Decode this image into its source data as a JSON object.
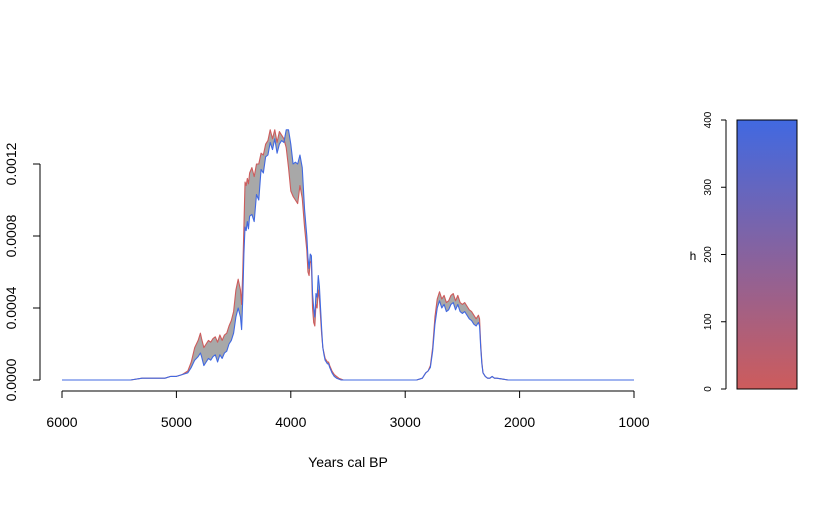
{
  "chart_data": [
    {
      "type": "area",
      "title": "",
      "xlabel": "Years cal BP",
      "ylabel": "",
      "xlim": [
        6000,
        1000
      ],
      "ylim": [
        0,
        0.0014
      ],
      "x_ticks": [
        6000,
        5000,
        4000,
        3000,
        2000,
        1000
      ],
      "x_tick_labels": [
        "6000",
        "5000",
        "4000",
        "3000",
        "2000",
        "1000"
      ],
      "y_ticks": [
        0,
        0.0004,
        0.0008,
        0.0012
      ],
      "y_tick_labels": [
        "0.0000",
        "0.0004",
        "0.0008",
        "0.0012"
      ],
      "grid": false,
      "band_fill_color": "#a8a8a8",
      "series": [
        {
          "color": "#cd5c5c",
          "x": [
            6000,
            5600,
            5400,
            5300,
            5250,
            5200,
            5100,
            5050,
            5000,
            4950,
            4900,
            4870,
            4840,
            4810,
            4790,
            4780,
            4760,
            4740,
            4720,
            4700,
            4680,
            4660,
            4640,
            4620,
            4600,
            4580,
            4560,
            4540,
            4520,
            4500,
            4480,
            4460,
            4440,
            4430,
            4420,
            4410,
            4400,
            4390,
            4380,
            4370,
            4360,
            4340,
            4320,
            4300,
            4280,
            4260,
            4240,
            4220,
            4200,
            4180,
            4160,
            4140,
            4120,
            4100,
            4080,
            4060,
            4040,
            4020,
            4000,
            3980,
            3960,
            3940,
            3920,
            3900,
            3880,
            3860,
            3850,
            3840,
            3830,
            3820,
            3810,
            3800,
            3790,
            3780,
            3770,
            3760,
            3750,
            3740,
            3730,
            3720,
            3710,
            3700,
            3690,
            3680,
            3670,
            3660,
            3640,
            3620,
            3600,
            3580,
            3560,
            3540,
            3500,
            3400,
            3200,
            3000,
            2900,
            2850,
            2830,
            2820,
            2800,
            2780,
            2760,
            2740,
            2720,
            2700,
            2680,
            2660,
            2640,
            2620,
            2600,
            2580,
            2560,
            2540,
            2520,
            2500,
            2480,
            2460,
            2440,
            2420,
            2400,
            2380,
            2360,
            2350,
            2340,
            2330,
            2320,
            2300,
            2280,
            2260,
            2240,
            2220,
            2200,
            2150,
            2100,
            2000,
            1500,
            1000
          ],
          "y": [
            0,
            0,
            0,
            1e-05,
            1e-05,
            1e-05,
            1e-05,
            2e-05,
            2e-05,
            3e-05,
            5e-05,
            0.0001,
            0.00018,
            0.00022,
            0.00026,
            0.00023,
            0.00018,
            0.0002,
            0.00022,
            0.00021,
            0.00023,
            0.00024,
            0.00021,
            0.00025,
            0.00022,
            0.00025,
            0.00026,
            0.0003,
            0.00033,
            0.00038,
            0.0005,
            0.00056,
            0.0005,
            0.00042,
            0.0006,
            0.00085,
            0.0011,
            0.00108,
            0.00112,
            0.00109,
            0.00115,
            0.00118,
            0.00113,
            0.0012,
            0.0012,
            0.00126,
            0.00125,
            0.00131,
            0.00133,
            0.00139,
            0.00134,
            0.00139,
            0.00132,
            0.00138,
            0.00136,
            0.00134,
            0.00129,
            0.00118,
            0.00105,
            0.00102,
            0.001,
            0.00098,
            0.00108,
            0.00101,
            0.00085,
            0.00072,
            0.0006,
            0.00058,
            0.00066,
            0.00065,
            0.0004,
            0.00032,
            0.0003,
            0.00042,
            0.0004,
            0.0005,
            0.00045,
            0.00035,
            0.00025,
            0.00018,
            0.00015,
            0.00012,
            0.00011,
            0.0001,
            0.0001,
            8e-05,
            5e-05,
            3e-05,
            2e-05,
            1e-05,
            5e-06,
            0,
            0,
            0,
            0,
            0,
            0,
            1e-05,
            3e-05,
            4e-05,
            5e-05,
            8e-05,
            0.00018,
            0.00035,
            0.00045,
            0.00049,
            0.00045,
            0.00047,
            0.00043,
            0.00044,
            0.00047,
            0.00048,
            0.00044,
            0.00047,
            0.00043,
            0.00042,
            0.00043,
            0.00041,
            0.00039,
            0.00038,
            0.00036,
            0.00034,
            0.00036,
            0.00034,
            0.0002,
            0.0001,
            4e-05,
            2e-05,
            1e-05,
            1e-05,
            2e-05,
            1e-05,
            1e-05,
            5e-06,
            0,
            0,
            0,
            0
          ]
        },
        {
          "color": "#4169e1",
          "x": [
            6000,
            5600,
            5400,
            5300,
            5250,
            5200,
            5100,
            5050,
            5000,
            4950,
            4900,
            4870,
            4840,
            4810,
            4790,
            4780,
            4760,
            4740,
            4720,
            4700,
            4680,
            4660,
            4640,
            4620,
            4600,
            4580,
            4560,
            4540,
            4520,
            4500,
            4480,
            4460,
            4440,
            4430,
            4420,
            4410,
            4400,
            4390,
            4380,
            4370,
            4360,
            4340,
            4320,
            4300,
            4280,
            4260,
            4240,
            4220,
            4200,
            4180,
            4160,
            4140,
            4120,
            4100,
            4080,
            4060,
            4040,
            4020,
            4000,
            3980,
            3960,
            3940,
            3920,
            3900,
            3880,
            3860,
            3850,
            3840,
            3830,
            3820,
            3810,
            3800,
            3790,
            3780,
            3770,
            3760,
            3750,
            3740,
            3730,
            3720,
            3710,
            3700,
            3690,
            3680,
            3670,
            3660,
            3640,
            3620,
            3600,
            3580,
            3560,
            3540,
            3500,
            3400,
            3200,
            3000,
            2900,
            2850,
            2830,
            2820,
            2800,
            2780,
            2760,
            2740,
            2720,
            2700,
            2680,
            2660,
            2640,
            2620,
            2600,
            2580,
            2560,
            2540,
            2520,
            2500,
            2480,
            2460,
            2440,
            2420,
            2400,
            2380,
            2360,
            2350,
            2340,
            2330,
            2320,
            2300,
            2280,
            2260,
            2240,
            2220,
            2200,
            2150,
            2100,
            2000,
            1500,
            1000
          ],
          "y": [
            0,
            0,
            0,
            1e-05,
            1e-05,
            1e-05,
            1e-05,
            2e-05,
            2e-05,
            3e-05,
            4e-05,
            7e-05,
            0.00011,
            0.00013,
            0.00015,
            0.00013,
            8e-05,
            0.0001,
            0.00012,
            0.00011,
            0.00013,
            0.00014,
            0.0001,
            0.00014,
            0.00012,
            0.00015,
            0.00016,
            0.0002,
            0.00022,
            0.00026,
            0.00035,
            0.0004,
            0.00035,
            0.00028,
            0.00045,
            0.0007,
            0.00085,
            0.00083,
            0.00088,
            0.00084,
            0.00091,
            0.00092,
            0.00088,
            0.00103,
            0.001,
            0.00117,
            0.00115,
            0.00124,
            0.00125,
            0.00132,
            0.00128,
            0.00134,
            0.00126,
            0.00131,
            0.00133,
            0.00132,
            0.00139,
            0.00139,
            0.00131,
            0.0012,
            0.00121,
            0.0012,
            0.00125,
            0.00118,
            0.00095,
            0.0008,
            0.00068,
            0.00062,
            0.0007,
            0.00069,
            0.00048,
            0.0004,
            0.00035,
            0.00048,
            0.00046,
            0.00058,
            0.00052,
            0.0004,
            0.00028,
            0.00018,
            0.00014,
            0.00011,
            0.0001,
            9e-05,
            9e-05,
            7e-05,
            4e-05,
            2e-05,
            1e-05,
            5e-06,
            0,
            0,
            0,
            0,
            0,
            0,
            0,
            1e-05,
            3e-05,
            4e-05,
            5e-05,
            7e-05,
            0.00016,
            0.00031,
            0.0004,
            0.00044,
            0.0004,
            0.00042,
            0.00038,
            0.00039,
            0.00042,
            0.00043,
            0.00039,
            0.00042,
            0.00038,
            0.00037,
            0.00038,
            0.00036,
            0.00034,
            0.00033,
            0.00031,
            0.0003,
            0.00032,
            0.0003,
            0.00018,
            9e-05,
            4e-05,
            2e-05,
            1e-05,
            1e-05,
            2e-05,
            1e-05,
            1e-05,
            5e-06,
            0,
            0,
            0,
            0
          ]
        }
      ]
    },
    {
      "type": "heatmap",
      "title": "",
      "ylabel": "h",
      "ylim": [
        0,
        400
      ],
      "y_ticks": [
        0,
        100,
        200,
        300,
        400
      ],
      "y_tick_labels": [
        "0",
        "100",
        "200",
        "300",
        "400"
      ],
      "color_low": "#cd5c5c",
      "color_high": "#4169e1"
    }
  ]
}
